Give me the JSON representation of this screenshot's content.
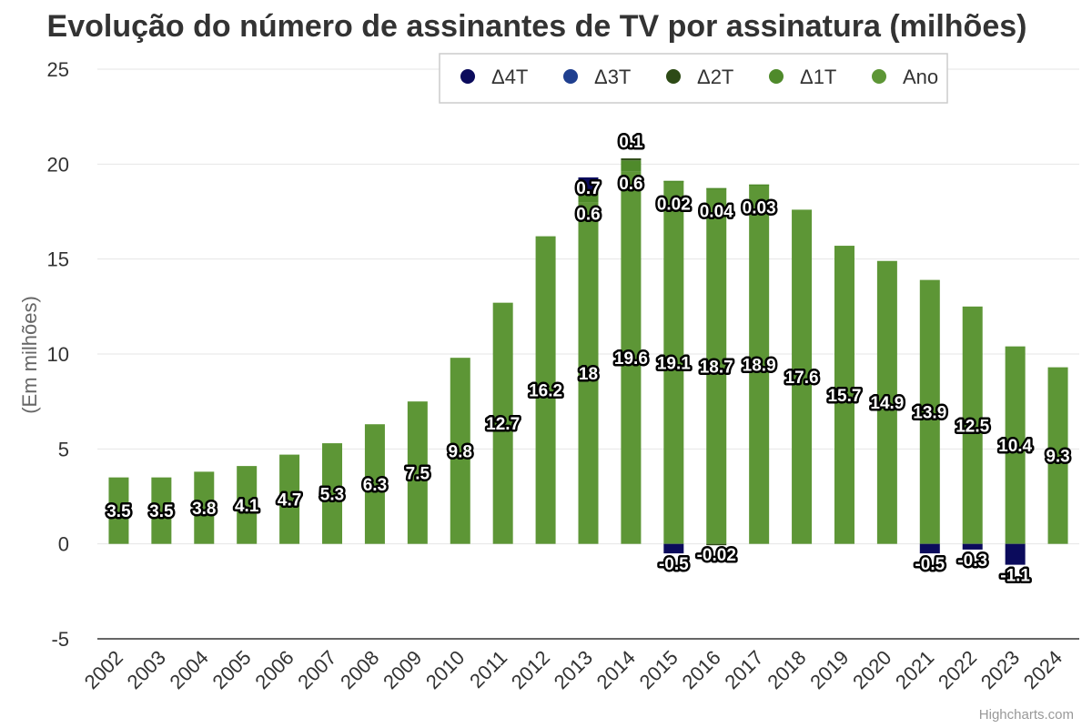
{
  "chart_data": {
    "type": "bar",
    "stacked": true,
    "title": "Evolução do número de assinantes de TV por assinatura (milhões)",
    "ylabel": "(Em milhões)",
    "ylim": [
      -5,
      25
    ],
    "yticks": [
      -5,
      0,
      5,
      10,
      15,
      20,
      25
    ],
    "grid": true,
    "legend_position": "top-right",
    "credits": "Highcharts.com",
    "categories": [
      "2002",
      "2003",
      "2004",
      "2005",
      "2006",
      "2007",
      "2008",
      "2009",
      "2010",
      "2011",
      "2012",
      "2013",
      "2014",
      "2015",
      "2016",
      "2017",
      "2018",
      "2019",
      "2020",
      "2021",
      "2022",
      "2023",
      "2024"
    ],
    "legend": [
      {
        "name": "Δ4T",
        "color": "#0b0b5c"
      },
      {
        "name": "Δ3T",
        "color": "#1f3f8f"
      },
      {
        "name": "Δ2T",
        "color": "#2d4a16"
      },
      {
        "name": "Δ1T",
        "color": "#4f8a2b"
      },
      {
        "name": "Ano",
        "color": "#5d9636"
      }
    ],
    "series": [
      {
        "name": "Ano",
        "color": "#5d9636",
        "values": [
          3.5,
          3.5,
          3.8,
          4.1,
          4.7,
          5.3,
          6.3,
          7.5,
          9.8,
          12.7,
          16.2,
          18,
          19.6,
          19.1,
          18.7,
          18.9,
          17.6,
          15.7,
          14.9,
          13.9,
          12.5,
          10.4,
          9.3
        ],
        "labels": [
          "3.5",
          "3.5",
          "3.8",
          "4.1",
          "4.7",
          "5.3",
          "6.3",
          "7.5",
          "9.8",
          "12.7",
          "16.2",
          "18",
          "19.6",
          "19.1",
          "18.7",
          "18.9",
          "17.6",
          "15.7",
          "14.9",
          "13.9",
          "12.5",
          "10.4",
          "9.3"
        ]
      },
      {
        "name": "Δ1T",
        "color": "#4f8a2b",
        "values": [
          null,
          null,
          null,
          null,
          null,
          null,
          null,
          null,
          null,
          null,
          null,
          0.6,
          0.6,
          0.02,
          0.04,
          0.03,
          null,
          null,
          null,
          null,
          null,
          null,
          null
        ],
        "labels": [
          null,
          null,
          null,
          null,
          null,
          null,
          null,
          null,
          null,
          null,
          null,
          "0.6",
          "0.6",
          "0.02",
          "0.04",
          "0.03",
          null,
          null,
          null,
          null,
          null,
          null,
          null
        ]
      },
      {
        "name": "Δ2T",
        "color": "#2d4a16",
        "values": [
          null,
          null,
          null,
          null,
          null,
          null,
          null,
          null,
          null,
          null,
          null,
          null,
          0.1,
          null,
          -0.02,
          null,
          null,
          null,
          null,
          null,
          null,
          null,
          null
        ],
        "labels": [
          null,
          null,
          null,
          null,
          null,
          null,
          null,
          null,
          null,
          null,
          null,
          null,
          "0.1",
          null,
          "-0.02",
          null,
          null,
          null,
          null,
          null,
          null,
          null,
          null
        ]
      },
      {
        "name": "Δ3T",
        "color": "#1f3f8f",
        "values": [
          null,
          null,
          null,
          null,
          null,
          null,
          null,
          null,
          null,
          null,
          null,
          null,
          null,
          null,
          null,
          null,
          null,
          null,
          null,
          null,
          null,
          null,
          null
        ],
        "labels": [
          null,
          null,
          null,
          null,
          null,
          null,
          null,
          null,
          null,
          null,
          null,
          null,
          null,
          null,
          null,
          null,
          null,
          null,
          null,
          null,
          null,
          null,
          null
        ]
      },
      {
        "name": "Δ4T",
        "color": "#0b0b5c",
        "values": [
          null,
          null,
          null,
          null,
          null,
          null,
          null,
          null,
          null,
          null,
          null,
          0.7,
          null,
          -0.5,
          null,
          null,
          null,
          null,
          null,
          -0.5,
          -0.3,
          -1.1,
          null
        ],
        "labels": [
          null,
          null,
          null,
          null,
          null,
          null,
          null,
          null,
          null,
          null,
          null,
          "0.7",
          null,
          "-0.5",
          null,
          null,
          null,
          null,
          null,
          "-0.5",
          "-0.3",
          "-1.1",
          null
        ]
      }
    ]
  }
}
